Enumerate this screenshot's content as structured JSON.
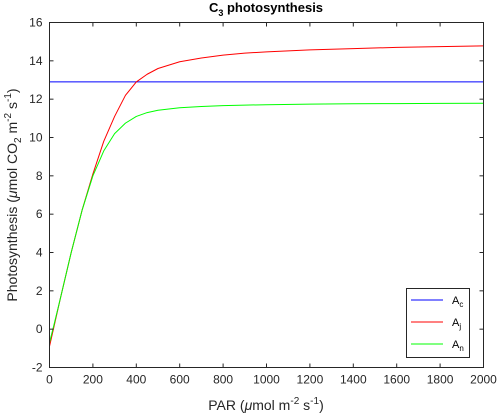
{
  "chart_data": {
    "type": "line",
    "title": {
      "main": "C",
      "sub": "3",
      "rest": " photosynthesis"
    },
    "xlabel": {
      "pre": "PAR (",
      "mu": "μ",
      "post": "mol m",
      "sup1": "-2",
      "mid": " s",
      "sup2": "-1",
      "end": ")"
    },
    "ylabel": {
      "pre": "Photosynthesis (",
      "mu": "μ",
      "post": "mol CO",
      "sub": "2",
      "mid": " m",
      "sup1": "-2",
      "mid2": " s",
      "sup2": "-1",
      "end": ")"
    },
    "xlim": [
      0,
      2000
    ],
    "ylim": [
      -2,
      16
    ],
    "xticks": [
      0,
      200,
      400,
      600,
      800,
      1000,
      1200,
      1400,
      1600,
      1800,
      2000
    ],
    "yticks": [
      -2,
      0,
      2,
      4,
      6,
      8,
      10,
      12,
      14,
      16
    ],
    "grid": false,
    "legend_position": "bottom-right",
    "series": [
      {
        "name": "A",
        "name_sub": "c",
        "color": "#0000ff",
        "x": [
          0,
          2000
        ],
        "y": [
          12.9,
          12.9
        ]
      },
      {
        "name": "A",
        "name_sub": "j",
        "color": "#ff0000",
        "x": [
          0,
          20,
          50,
          100,
          150,
          200,
          250,
          300,
          350,
          400,
          450,
          500,
          600,
          700,
          800,
          900,
          1000,
          1200,
          1400,
          1600,
          1800,
          2000
        ],
        "y": [
          -0.9,
          0.1,
          1.6,
          4.0,
          6.2,
          8.1,
          9.8,
          11.1,
          12.2,
          12.9,
          13.3,
          13.6,
          13.95,
          14.15,
          14.3,
          14.4,
          14.47,
          14.57,
          14.64,
          14.7,
          14.74,
          14.78
        ]
      },
      {
        "name": "A",
        "name_sub": "n",
        "color": "#00ff00",
        "x": [
          0,
          20,
          50,
          100,
          150,
          200,
          250,
          300,
          350,
          400,
          450,
          500,
          600,
          700,
          800,
          900,
          1000,
          1200,
          1400,
          1600,
          1800,
          2000
        ],
        "y": [
          -0.7,
          0.2,
          1.6,
          4.0,
          6.2,
          8.0,
          9.3,
          10.2,
          10.75,
          11.1,
          11.3,
          11.42,
          11.55,
          11.62,
          11.66,
          11.69,
          11.71,
          11.74,
          11.76,
          11.77,
          11.78,
          11.79
        ]
      }
    ]
  }
}
